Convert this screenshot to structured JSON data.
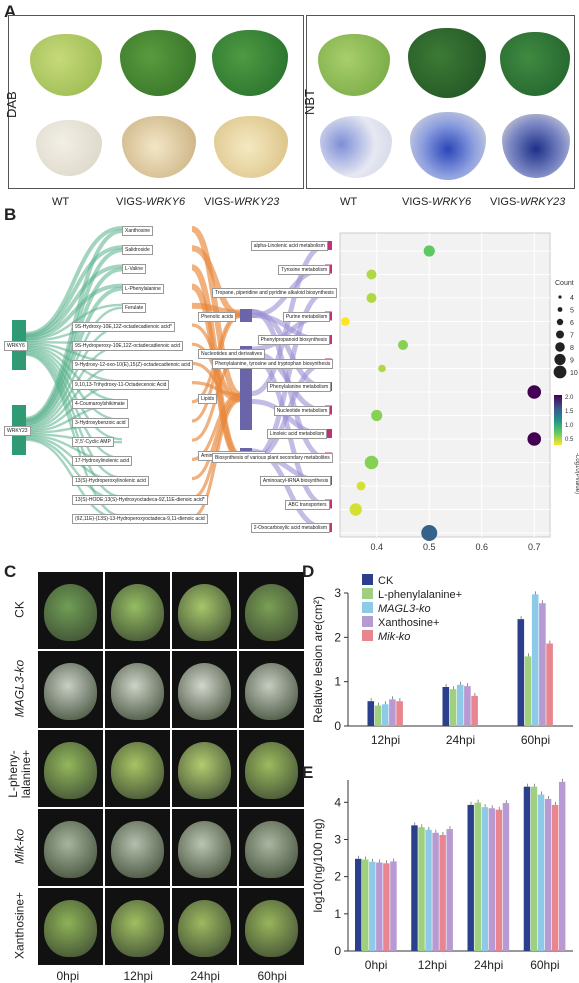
{
  "panels": {
    "a": "A",
    "b": "B",
    "c": "C",
    "d": "D",
    "e": "E"
  },
  "panel_a": {
    "left_label": "DAB",
    "right_label": "NBT",
    "captions": [
      {
        "prefix": "WT",
        "gene": ""
      },
      {
        "prefix": "VIGS-",
        "gene": "WRKY6"
      },
      {
        "prefix": "VIGS-",
        "gene": "WRKY23"
      }
    ]
  },
  "panel_b": {
    "sources": [
      "WRKY6",
      "WRKY23"
    ],
    "metabolites": [
      "Xanthosine",
      "Salidroside",
      "L-Valine",
      "L-Phenylalanine",
      "Ferulate",
      "9S-Hydroxy-10E,12Z-octadecadienoic acid*",
      "9S-Hydroperoxy-10E,12Z-octadecadienoic acid",
      "9-Hydroxy-12-oxo-10(E),15(Z)-octadecadienoic acid",
      "9,10,13-Trihydroxy-11-Octadecenoic Acid",
      "4-Coumaroylshikimate",
      "3-Hydroxybenzoic acid",
      "3',5'-Cyclic AMP",
      "17-Hydroxylinolenic acid",
      "13(S)-Hydroperoxylinolenic acid",
      "13(S)-HODE;13(S)-Hydroxyoctadeca-9Z,11E-dienoic acid*",
      "(9Z,11E)-(13S)-13-Hydroperoxyoctadeca-9,11-dienoic acid"
    ],
    "classes": [
      "Phenolic acids",
      "Nucleotides and derivatives",
      "Lipids",
      "Amino acids and derivatives"
    ],
    "pathways": [
      "alpha-Linolenic acid metabolism",
      "Tyrosine metabolism",
      "Tropane, piperidine and pyridine alkaloid biosynthesis",
      "Purine metabolism",
      "Phenylpropanoid biosynthesis",
      "Phenylalanine, tyrosine and tryptophan biosynthesis",
      "Phenylalanine metabolism",
      "Nucleotide metabolism",
      "Linoleic acid metabolism",
      "Biosynthesis of various plant secondary metabolites",
      "Aminoacyl-tRNA biosynthesis",
      "ABC transporters",
      "2-Oxocarboxylic acid metabolism"
    ],
    "legend_count_title": "Count",
    "legend_count_values": [
      "4",
      "5",
      "6",
      "7",
      "8",
      "9",
      "10"
    ],
    "legend_color_title": "-Log10(Pvalue)",
    "legend_color_values": [
      "2.0",
      "1.5",
      "1.0",
      "0.5"
    ]
  },
  "panel_c": {
    "rows": [
      {
        "label": "CK",
        "italic": false
      },
      {
        "label": "MAGL3-ko",
        "italic": true
      },
      {
        "label": "L-pheny-\nlalanine+",
        "italic": false
      },
      {
        "label": "Mik-ko",
        "italic": true
      },
      {
        "label": "Xanthosine+",
        "italic": false
      }
    ],
    "cols": [
      "0hpi",
      "12hpi",
      "24hpi",
      "60hpi"
    ]
  },
  "chart_data": [
    {
      "type": "bar",
      "panel": "D",
      "ylabel": "Relative lesion are(cm²)",
      "categories": [
        "12hpi",
        "24hpi",
        "60hpi"
      ],
      "ylim": [
        0,
        3
      ],
      "yticks": [
        "0",
        "1",
        "2",
        "3"
      ],
      "series": [
        {
          "name": "CK",
          "color": "#2b3f8c",
          "values": [
            0.56,
            0.88,
            2.41
          ]
        },
        {
          "name": "L-phenylalanine+",
          "color": "#9ed07f",
          "values": [
            0.46,
            0.83,
            1.57
          ]
        },
        {
          "name": "MAGL3-ko",
          "color": "#8ec9e8",
          "values": [
            0.49,
            0.93,
            2.97
          ]
        },
        {
          "name": "Xanthosine+",
          "color": "#b89ad3",
          "values": [
            0.6,
            0.9,
            2.77
          ]
        },
        {
          "name": "Mik-ko",
          "color": "#e8858f",
          "values": [
            0.56,
            0.68,
            1.86
          ]
        }
      ],
      "legend": [
        {
          "name": "CK",
          "italic": false,
          "color": "#2b3f8c"
        },
        {
          "name": "L-phenylalanine+",
          "italic": false,
          "color": "#9ed07f"
        },
        {
          "name": "MAGL3-ko",
          "italic": true,
          "color": "#8ec9e8"
        },
        {
          "name": "Xanthosine+",
          "italic": false,
          "color": "#b89ad3"
        },
        {
          "name": "Mik-ko",
          "italic": true,
          "color": "#e8858f"
        }
      ]
    },
    {
      "type": "bar",
      "panel": "E",
      "ylabel": "log10(ng/100 mg)",
      "categories": [
        "0hpi",
        "12hpi",
        "24hpi",
        "60hpi"
      ],
      "ylim": [
        0,
        4.6
      ],
      "yticks": [
        "0",
        "1",
        "2",
        "3",
        "4"
      ],
      "series": [
        {
          "name": "CK",
          "color": "#2b3f8c",
          "values": [
            2.48,
            3.38,
            3.93,
            4.42
          ]
        },
        {
          "name": "L-phenylalanine+",
          "color": "#9ed07f",
          "values": [
            2.46,
            3.33,
            3.99,
            4.42
          ]
        },
        {
          "name": "MAGL3-ko",
          "color": "#8ec9e8",
          "values": [
            2.4,
            3.26,
            3.87,
            4.21
          ]
        },
        {
          "name": "Xanthosine+",
          "color": "#b89ad3",
          "values": [
            2.38,
            3.18,
            3.84,
            4.09
          ]
        },
        {
          "name": "Mik-ko",
          "color": "#e8858f",
          "values": [
            2.36,
            3.12,
            3.8,
            3.93
          ]
        },
        {
          "name": "",
          "color": "#b89ad3",
          "values": [
            2.41,
            3.28,
            3.98,
            4.55
          ]
        }
      ]
    }
  ]
}
